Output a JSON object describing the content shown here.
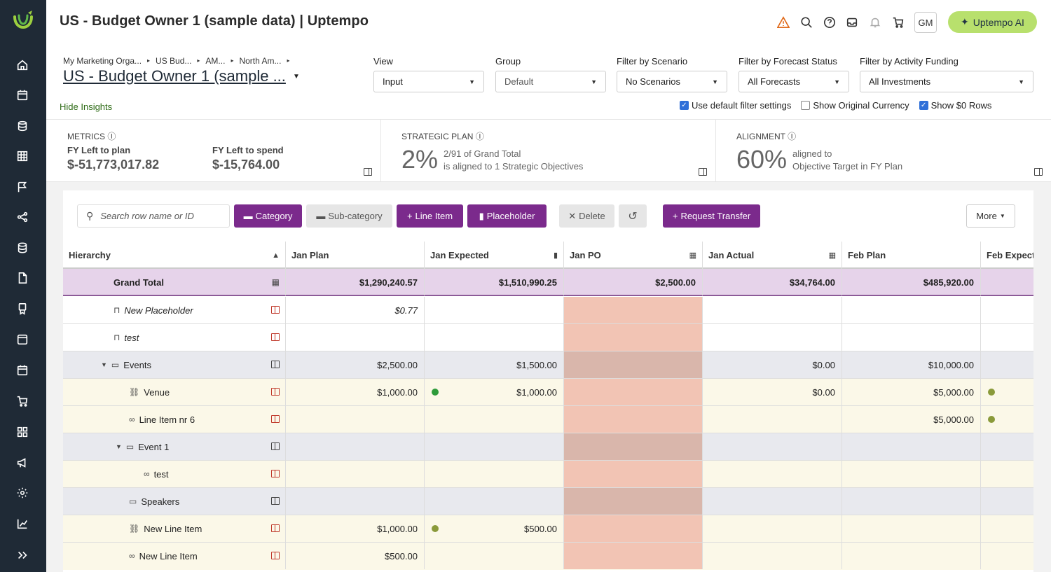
{
  "header": {
    "title": "US - Budget Owner 1 (sample data) | Uptempo",
    "avatar": "GM",
    "ai_button": "Uptempo AI"
  },
  "breadcrumb": [
    "My Marketing Orga...",
    "US Bud...",
    "AM...",
    "North Am..."
  ],
  "subtitle": "US - Budget Owner 1 (sample ...",
  "hide_insights": "Hide Insights",
  "filters": {
    "view": {
      "label": "View",
      "value": "Input"
    },
    "group": {
      "label": "Group",
      "value": "Default"
    },
    "scenario": {
      "label": "Filter by Scenario",
      "value": "No Scenarios"
    },
    "forecast": {
      "label": "Filter by Forecast Status",
      "value": "All Forecasts"
    },
    "funding": {
      "label": "Filter by Activity Funding",
      "value": "All Investments"
    }
  },
  "checkboxes": [
    {
      "label": "Use default filter settings",
      "checked": true
    },
    {
      "label": "Show Original Currency",
      "checked": false
    },
    {
      "label": "Show $0 Rows",
      "checked": true
    }
  ],
  "metrics": {
    "heading": "METRICS",
    "left_plan_label": "FY Left to plan",
    "left_plan_value": "$-51,773,017.82",
    "left_spend_label": "FY Left to spend",
    "left_spend_value": "$-15,764.00"
  },
  "strategic": {
    "heading": "STRATEGIC PLAN",
    "pct": "2%",
    "line1": "2/91 of Grand Total",
    "line2": "is aligned to 1 Strategic Objectives"
  },
  "alignment": {
    "heading": "ALIGNMENT",
    "pct": "60%",
    "line1": "aligned to",
    "line2": "Objective Target in FY Plan"
  },
  "toolbar": {
    "search_placeholder": "Search row name or ID",
    "category": "Category",
    "subcategory": "Sub-category",
    "line_item": "Line Item",
    "placeholder": "Placeholder",
    "delete": "Delete",
    "request_transfer": "Request Transfer",
    "more": "More"
  },
  "columns": [
    "Hierarchy",
    "Jan Plan",
    "Jan Expected",
    "Jan PO",
    "Jan Actual",
    "Feb Plan",
    "Feb Expect"
  ],
  "rows": [
    {
      "name": "Grand Total",
      "jan_plan": "$1,290,240.57",
      "jan_expected": "$1,510,990.25",
      "jan_po": "$2,500.00",
      "jan_actual": "$34,764.00",
      "feb_plan": "$485,920.00"
    },
    {
      "name": "New Placeholder",
      "jan_plan": "$0.77",
      "jan_expected": "",
      "jan_actual": "",
      "feb_plan": ""
    },
    {
      "name": "test",
      "jan_plan": "",
      "jan_expected": "",
      "jan_actual": "",
      "feb_plan": ""
    },
    {
      "name": "Events",
      "jan_plan": "$2,500.00",
      "jan_expected": "$1,500.00",
      "jan_actual": "$0.00",
      "feb_plan": "$10,000.00"
    },
    {
      "name": "Venue",
      "jan_plan": "$1,000.00",
      "jan_expected": "$1,000.00",
      "jan_actual": "$0.00",
      "feb_plan": "$5,000.00"
    },
    {
      "name": "Line Item nr 6",
      "jan_plan": "",
      "jan_expected": "",
      "jan_actual": "",
      "feb_plan": "$5,000.00"
    },
    {
      "name": "Event 1",
      "jan_plan": "",
      "jan_expected": "",
      "jan_actual": "",
      "feb_plan": ""
    },
    {
      "name": "test",
      "jan_plan": "",
      "jan_expected": "",
      "jan_actual": "",
      "feb_plan": ""
    },
    {
      "name": "Speakers",
      "jan_plan": "",
      "jan_expected": "",
      "jan_actual": "",
      "feb_plan": ""
    },
    {
      "name": "New Line Item",
      "jan_plan": "$1,000.00",
      "jan_expected": "$500.00",
      "jan_actual": "",
      "feb_plan": ""
    },
    {
      "name": "New Line Item",
      "jan_plan": "$500.00",
      "jan_expected": "",
      "jan_actual": "",
      "feb_plan": ""
    }
  ],
  "colors": {
    "sidebar": "#1f2a36",
    "accent_purple": "#7b2a8c",
    "grand_total_row": "#e6d3ea",
    "category_row": "#e8e9ee",
    "line_item_row": "#fbf8e8",
    "po_column": "#f2c4b4",
    "ai_green": "#b8e06d"
  }
}
